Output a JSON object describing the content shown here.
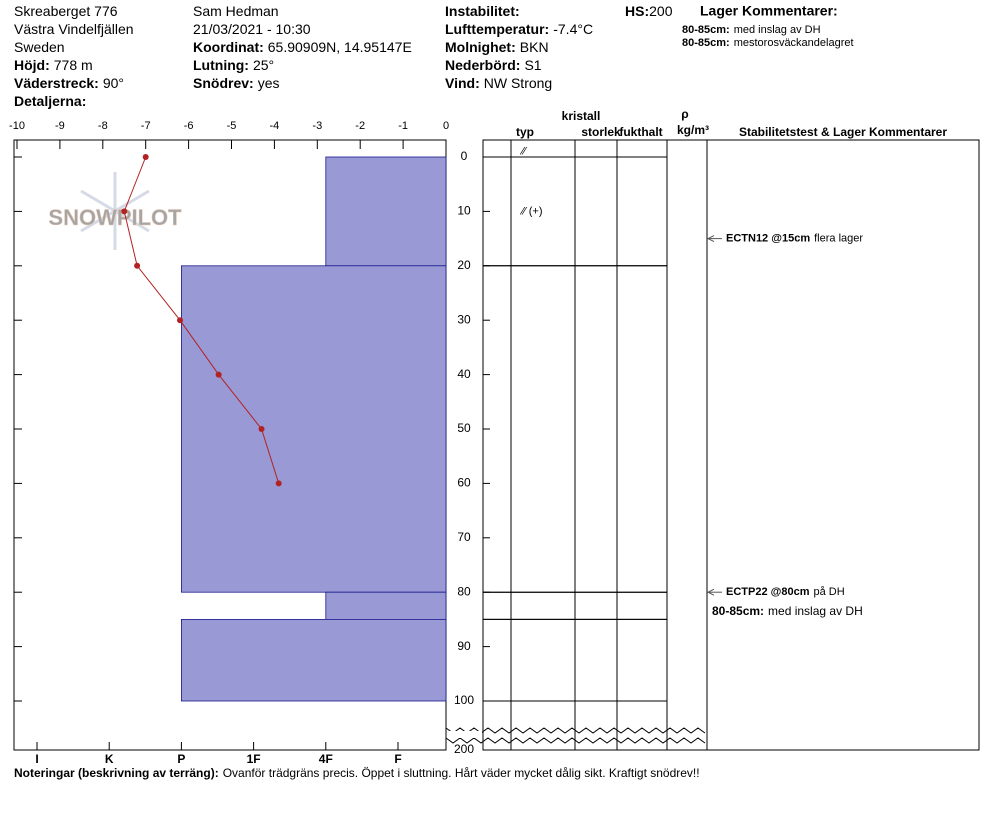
{
  "header": {
    "site": [
      {
        "value": "Skreaberget 776"
      },
      {
        "value": "Västra Vindelfjällen"
      },
      {
        "value": "Sweden"
      },
      {
        "label": "Höjd:",
        "value": "778 m"
      },
      {
        "label": "Väderstreck:",
        "value": "90°"
      },
      {
        "label": "Detaljerna:"
      }
    ],
    "observer": [
      {
        "value": "Sam Hedman"
      },
      {
        "value": "21/03/2021 - 10:30"
      },
      {
        "label": "Koordinat:",
        "value": "65.90909N, 14.95147E"
      },
      {
        "label": "Lutning:",
        "value": "25°"
      },
      {
        "label": "Snödrev:",
        "value": "yes"
      }
    ],
    "conditions": [
      {
        "label": "Instabilitet:"
      },
      {
        "label": "Lufttemperatur:",
        "value": "-7.4°C"
      },
      {
        "label": "Molnighet:",
        "value": "BKN"
      },
      {
        "label": "Nederbörd:",
        "value": "S1"
      },
      {
        "label": "Vind:",
        "value": "NW Strong"
      }
    ],
    "hs": {
      "label": "HS:",
      "value": "200"
    },
    "layer_comments": {
      "title": "Lager Kommentarer:",
      "items": [
        {
          "label": "80-85cm:",
          "value": "med inslag av DH"
        },
        {
          "label": "80-85cm:",
          "value": "mestorosväckandelagret"
        }
      ]
    }
  },
  "chart_data": {
    "type": "snow-profile",
    "logo": "SNOWPILOT",
    "xlim": [
      -10,
      0
    ],
    "xticks": [
      -10,
      -9,
      -8,
      -7,
      -6,
      -5,
      -4,
      -3,
      -2,
      -1,
      0
    ],
    "ylim": [
      0,
      200
    ],
    "yticks": [
      0,
      10,
      20,
      30,
      40,
      50,
      60,
      70,
      80,
      90,
      100,
      200
    ],
    "hardness_scale": [
      "I",
      "K",
      "P",
      "1F",
      "4F",
      "F"
    ],
    "temperature": {
      "color": "#b22222",
      "depths": [
        0,
        10,
        20,
        30,
        40,
        50,
        60
      ],
      "values": [
        -7.0,
        -7.5,
        -7.2,
        -6.2,
        -5.3,
        -4.3,
        -3.9
      ]
    },
    "layer_color": "#9999d6",
    "layers": [
      {
        "top": 0,
        "bottom": 20,
        "hardness": "4F"
      },
      {
        "top": 20,
        "bottom": 80,
        "hardness": "P"
      },
      {
        "top": 80,
        "bottom": 85,
        "hardness": "4F"
      },
      {
        "top": 85,
        "bottom": 100,
        "hardness": "P"
      }
    ],
    "columns": [
      "typ",
      "kristall",
      "storlek",
      "fukthalt",
      "ρ",
      "kg/m³",
      "Stabilitetstest & Lager Kommentarer"
    ],
    "crystals": [
      {
        "depth": -1,
        "symbol": "⁄⁄"
      },
      {
        "depth": 10,
        "symbol": "⁄⁄ (+)"
      }
    ],
    "tests": [
      {
        "depth": 15,
        "label": "ECTN12 @15cm",
        "comment": "flera lager"
      },
      {
        "depth": 80,
        "label": "ECTP22 @80cm",
        "comment": "på DH"
      }
    ],
    "profile_comments": [
      {
        "label": "80-85cm:",
        "value": "med inslag av DH"
      }
    ]
  },
  "notes": {
    "label": "Noteringar (beskrivning av terräng):",
    "value": "Ovanför trädgräns precis. Öppet i sluttning. Hårt väder mycket dålig sikt. Kraftigt snödrev!!"
  }
}
